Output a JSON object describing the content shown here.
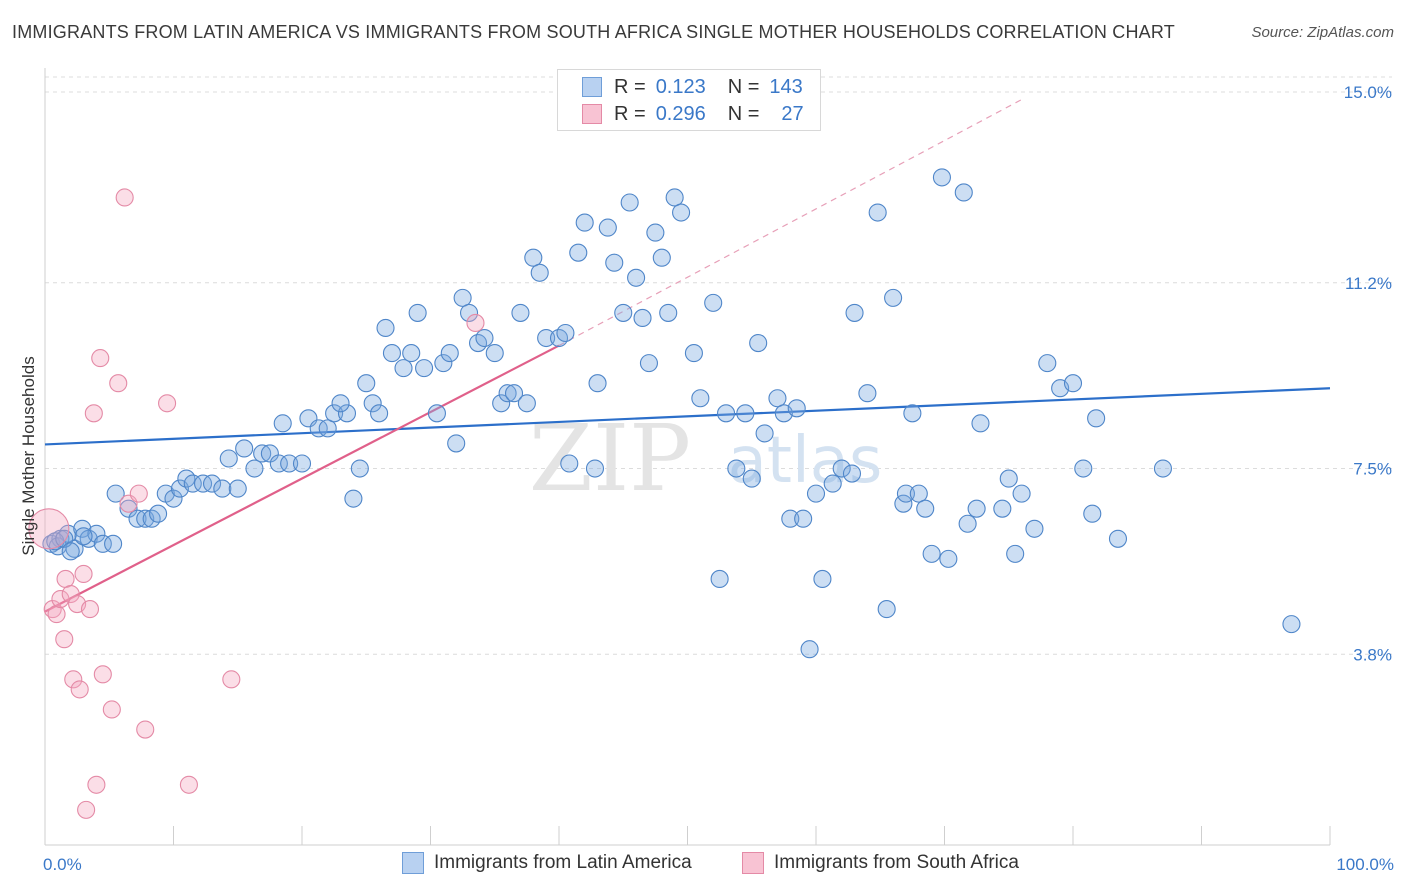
{
  "title": "IMMIGRANTS FROM LATIN AMERICA VS IMMIGRANTS FROM SOUTH AFRICA SINGLE MOTHER HOUSEHOLDS CORRELATION CHART",
  "source": "Source: ZipAtlas.com",
  "legend_top": {
    "row1": {
      "r_label": "R =",
      "r_value": "0.123",
      "n_label": "N =",
      "n_value": "143"
    },
    "row2": {
      "r_label": "R =",
      "r_value": "0.296",
      "n_label": "N =",
      "n_value": "27"
    }
  },
  "legend_bottom": {
    "item1": "Immigrants from Latin America",
    "item2": "Immigrants from South Africa"
  },
  "watermark": {
    "zip": "ZIP",
    "atlas": "atlas"
  },
  "chart_data": {
    "type": "scatter",
    "title": "IMMIGRANTS FROM LATIN AMERICA VS IMMIGRANTS FROM SOUTH AFRICA SINGLE MOTHER HOUSEHOLDS CORRELATION CHART",
    "xlabel": "",
    "ylabel": "Single Mother Households",
    "xlim": [
      0,
      100
    ],
    "ylim": [
      0,
      15.3
    ],
    "x_tick_labels": [
      "0.0%",
      "100.0%"
    ],
    "y_ticks": [
      3.8,
      7.5,
      11.2,
      15.0
    ],
    "y_tick_labels": [
      "3.8%",
      "7.5%",
      "11.2%",
      "15.0%"
    ],
    "grid": "horizontal dashed",
    "legend_position": "top-center",
    "series": [
      {
        "name": "Immigrants from Latin America",
        "color": "#7aa8e0",
        "stroke": "#4f86c9",
        "trend": {
          "x": [
            0,
            100
          ],
          "y": [
            7.98,
            9.1
          ],
          "color": "#2c6fca"
        },
        "points": [
          [
            0.5,
            6.0
          ],
          [
            1.2,
            6.1
          ],
          [
            1.8,
            6.2
          ],
          [
            2.3,
            5.9
          ],
          [
            2.9,
            6.3
          ],
          [
            3.4,
            6.1
          ],
          [
            4.0,
            6.2
          ],
          [
            4.5,
            6.0
          ],
          [
            5.3,
            6.0
          ],
          [
            1.0,
            5.95
          ],
          [
            5.5,
            7.0
          ],
          [
            6.5,
            6.7
          ],
          [
            7.2,
            6.5
          ],
          [
            7.8,
            6.5
          ],
          [
            8.3,
            6.5
          ],
          [
            8.8,
            6.6
          ],
          [
            9.4,
            7.0
          ],
          [
            10.0,
            6.9
          ],
          [
            10.5,
            7.1
          ],
          [
            11.0,
            7.3
          ],
          [
            11.5,
            7.2
          ],
          [
            12.3,
            7.2
          ],
          [
            13.0,
            7.2
          ],
          [
            13.8,
            7.1
          ],
          [
            14.3,
            7.7
          ],
          [
            15.0,
            7.1
          ],
          [
            15.5,
            7.9
          ],
          [
            16.3,
            7.5
          ],
          [
            16.9,
            7.8
          ],
          [
            17.5,
            7.8
          ],
          [
            18.2,
            7.6
          ],
          [
            19.0,
            7.6
          ],
          [
            20.0,
            7.6
          ],
          [
            18.5,
            8.4
          ],
          [
            20.5,
            8.5
          ],
          [
            21.3,
            8.3
          ],
          [
            22.0,
            8.3
          ],
          [
            22.5,
            8.6
          ],
          [
            23.5,
            8.6
          ],
          [
            23.0,
            8.8
          ],
          [
            24.0,
            6.9
          ],
          [
            24.5,
            7.5
          ],
          [
            25.0,
            9.2
          ],
          [
            25.5,
            8.8
          ],
          [
            26.0,
            8.6
          ],
          [
            26.5,
            10.3
          ],
          [
            27.0,
            9.8
          ],
          [
            27.9,
            9.5
          ],
          [
            28.5,
            9.8
          ],
          [
            29.0,
            10.6
          ],
          [
            29.5,
            9.5
          ],
          [
            30.5,
            8.6
          ],
          [
            31.0,
            9.6
          ],
          [
            31.5,
            9.8
          ],
          [
            32.0,
            8.0
          ],
          [
            32.5,
            10.9
          ],
          [
            33.0,
            10.6
          ],
          [
            33.7,
            10.0
          ],
          [
            34.2,
            10.1
          ],
          [
            35.0,
            9.8
          ],
          [
            35.5,
            8.8
          ],
          [
            36.0,
            9.0
          ],
          [
            36.5,
            9.0
          ],
          [
            37.0,
            10.6
          ],
          [
            37.5,
            8.8
          ],
          [
            38.0,
            11.7
          ],
          [
            38.5,
            11.4
          ],
          [
            39.0,
            10.1
          ],
          [
            40.0,
            10.1
          ],
          [
            40.5,
            10.2
          ],
          [
            40.8,
            7.6
          ],
          [
            41.5,
            11.8
          ],
          [
            42.0,
            12.4
          ],
          [
            42.8,
            7.5
          ],
          [
            43.0,
            9.2
          ],
          [
            43.8,
            12.3
          ],
          [
            44.3,
            11.6
          ],
          [
            45.0,
            10.6
          ],
          [
            45.5,
            12.8
          ],
          [
            46.0,
            11.3
          ],
          [
            46.5,
            10.5
          ],
          [
            47.0,
            9.6
          ],
          [
            47.5,
            12.2
          ],
          [
            48.0,
            11.7
          ],
          [
            48.5,
            10.6
          ],
          [
            49.0,
            12.9
          ],
          [
            49.5,
            12.6
          ],
          [
            50.5,
            9.8
          ],
          [
            51.0,
            8.9
          ],
          [
            52.0,
            10.8
          ],
          [
            52.5,
            5.3
          ],
          [
            53.0,
            8.6
          ],
          [
            53.8,
            7.5
          ],
          [
            54.5,
            8.6
          ],
          [
            55.0,
            7.3
          ],
          [
            55.5,
            10.0
          ],
          [
            56.0,
            8.2
          ],
          [
            57.0,
            8.9
          ],
          [
            57.5,
            8.6
          ],
          [
            58.5,
            8.7
          ],
          [
            58.0,
            6.5
          ],
          [
            59.0,
            6.5
          ],
          [
            59.5,
            3.9
          ],
          [
            60.0,
            7.0
          ],
          [
            60.5,
            5.3
          ],
          [
            61.3,
            7.2
          ],
          [
            62.0,
            7.5
          ],
          [
            62.8,
            7.4
          ],
          [
            63.0,
            10.6
          ],
          [
            64.0,
            9.0
          ],
          [
            64.8,
            12.6
          ],
          [
            65.5,
            4.7
          ],
          [
            66.0,
            10.9
          ],
          [
            66.8,
            6.8
          ],
          [
            67.5,
            8.6
          ],
          [
            67.0,
            7.0
          ],
          [
            68.0,
            7.0
          ],
          [
            68.5,
            6.7
          ],
          [
            69.0,
            5.8
          ],
          [
            69.8,
            13.3
          ],
          [
            70.3,
            5.7
          ],
          [
            71.5,
            13.0
          ],
          [
            71.8,
            6.4
          ],
          [
            72.5,
            6.7
          ],
          [
            72.8,
            8.4
          ],
          [
            74.5,
            6.7
          ],
          [
            75.0,
            7.3
          ],
          [
            75.5,
            5.8
          ],
          [
            76.0,
            7.0
          ],
          [
            77.0,
            6.3
          ],
          [
            78.0,
            9.6
          ],
          [
            79.0,
            9.1
          ],
          [
            80.0,
            9.2
          ],
          [
            80.8,
            7.5
          ],
          [
            81.5,
            6.6
          ],
          [
            81.8,
            8.5
          ],
          [
            83.5,
            6.1
          ],
          [
            87.0,
            7.5
          ],
          [
            97.0,
            4.4
          ],
          [
            0.8,
            6.05
          ],
          [
            1.5,
            6.1
          ],
          [
            2.0,
            5.85
          ],
          [
            3.0,
            6.15
          ]
        ]
      },
      {
        "name": "Immigrants from South Africa",
        "color": "#f4a8c0",
        "stroke": "#e48aa6",
        "trend": {
          "x": [
            0,
            40
          ],
          "y": [
            4.65,
            9.95
          ],
          "color": "#e0608a"
        },
        "trend_dashed": {
          "x": [
            40,
            76
          ],
          "y": [
            9.95,
            14.85
          ]
        },
        "points": [
          [
            0.3,
            6.3
          ],
          [
            0.6,
            4.7
          ],
          [
            0.9,
            4.6
          ],
          [
            1.2,
            4.9
          ],
          [
            1.5,
            4.1
          ],
          [
            1.6,
            5.3
          ],
          [
            2.0,
            5.0
          ],
          [
            2.2,
            3.3
          ],
          [
            2.5,
            4.8
          ],
          [
            2.7,
            3.1
          ],
          [
            3.0,
            5.4
          ],
          [
            3.2,
            0.7
          ],
          [
            3.5,
            4.7
          ],
          [
            3.8,
            8.6
          ],
          [
            4.0,
            1.2
          ],
          [
            4.3,
            9.7
          ],
          [
            4.5,
            3.4
          ],
          [
            5.2,
            2.7
          ],
          [
            5.7,
            9.2
          ],
          [
            6.2,
            12.9
          ],
          [
            6.5,
            6.8
          ],
          [
            7.3,
            7.0
          ],
          [
            7.8,
            2.3
          ],
          [
            9.5,
            8.8
          ],
          [
            11.2,
            1.2
          ],
          [
            14.5,
            3.3
          ],
          [
            33.5,
            10.4
          ]
        ]
      }
    ]
  }
}
